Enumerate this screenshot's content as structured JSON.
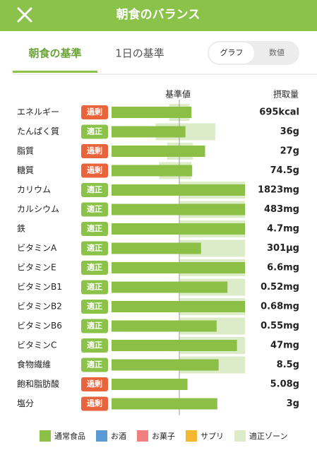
{
  "header": {
    "title": "朝食のバランス"
  },
  "tabs": [
    "朝食の基準",
    "1日の基準"
  ],
  "toggle": [
    "グラフ",
    "数値"
  ],
  "chart_data": {
    "type": "bar",
    "reference_label": "基準値",
    "amount_label": "摂取量",
    "reference": 100,
    "xlim": [
      0,
      200
    ],
    "categories": [
      "エネルギー",
      "たんぱく質",
      "脂質",
      "糖質",
      "カリウム",
      "カルシウム",
      "鉄",
      "ビタミンA",
      "ビタミンE",
      "ビタミンB1",
      "ビタミンB2",
      "ビタミンB6",
      "ビタミンC",
      "食物繊維",
      "飽和脂肪酸",
      "塩分"
    ],
    "status": [
      "過剰",
      "適正",
      "過剰",
      "過剰",
      "適正",
      "適正",
      "適正",
      "適正",
      "適正",
      "適正",
      "適正",
      "適正",
      "適正",
      "適正",
      "過剰",
      "過剰"
    ],
    "status_color": [
      "#e8643c",
      "#8bc34a",
      "#e8643c",
      "#e8643c",
      "#8bc34a",
      "#8bc34a",
      "#8bc34a",
      "#8bc34a",
      "#8bc34a",
      "#8bc34a",
      "#8bc34a",
      "#8bc34a",
      "#8bc34a",
      "#8bc34a",
      "#e8643c",
      "#e8643c"
    ],
    "amounts": [
      "695kcal",
      "36g",
      "27g",
      "74.5g",
      "1823mg",
      "483mg",
      "4.7mg",
      "301µg",
      "6.6mg",
      "0.52mg",
      "0.68mg",
      "0.55mg",
      "47mg",
      "8.5g",
      "5.08g",
      "3g"
    ],
    "values": [
      118,
      109,
      138,
      119,
      197,
      197,
      197,
      132,
      197,
      171,
      197,
      155,
      185,
      158,
      112,
      156
    ],
    "zones": [
      [
        85,
        115
      ],
      [
        65,
        153
      ],
      [
        82,
        120
      ],
      [
        70,
        118
      ],
      [
        100,
        197
      ],
      [
        100,
        197
      ],
      [
        100,
        197
      ],
      [
        100,
        197
      ],
      [
        100,
        197
      ],
      [
        100,
        197
      ],
      [
        100,
        197
      ],
      [
        100,
        197
      ],
      [
        100,
        197
      ],
      [
        100,
        197
      ],
      null,
      null
    ],
    "color": "#8cbf45",
    "zone_color": "#dcebc8",
    "legend": [
      {
        "name": "通常食品",
        "color": "#8cbf45"
      },
      {
        "name": "お酒",
        "color": "#5b9bd5"
      },
      {
        "name": "お菓子",
        "color": "#f08080"
      },
      {
        "name": "サプリ",
        "color": "#f5b731"
      },
      {
        "name": "適正ゾーン",
        "color": "#dcebc8"
      }
    ]
  }
}
